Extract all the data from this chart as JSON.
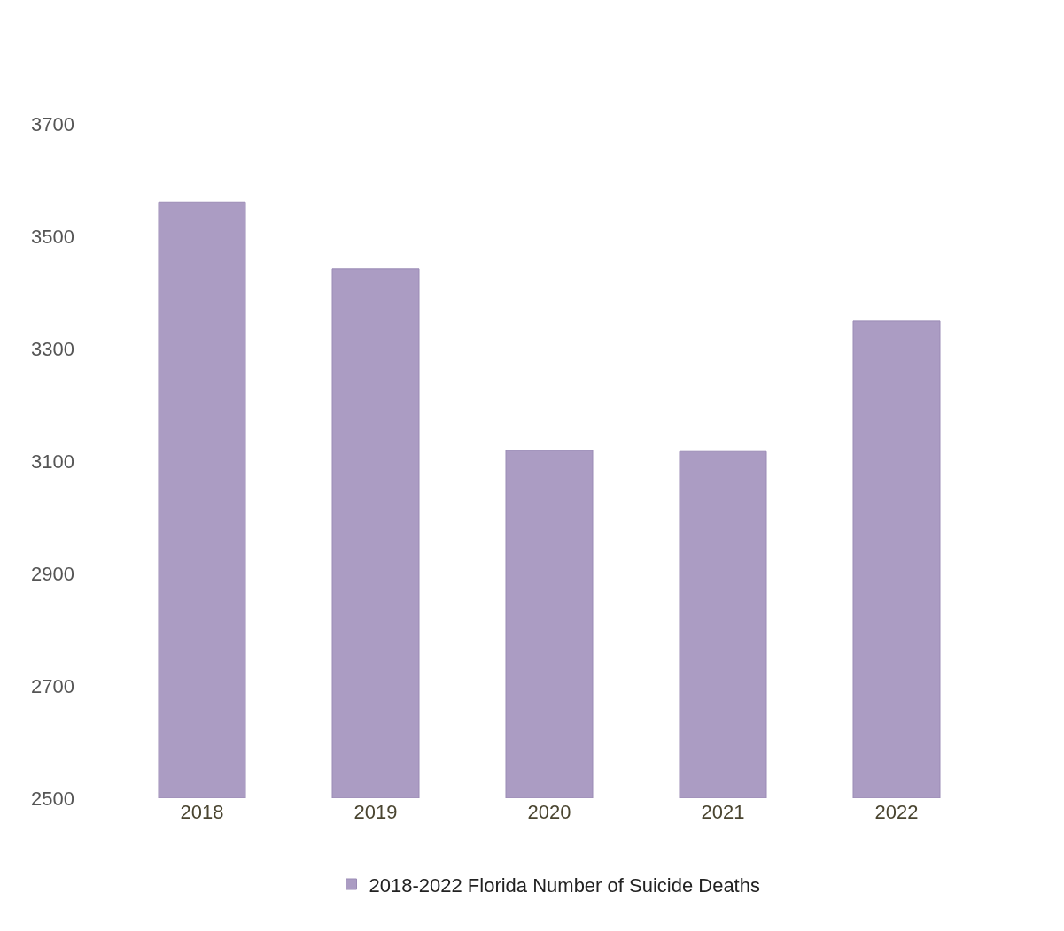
{
  "chart_data": {
    "type": "bar",
    "categories": [
      "2018",
      "2019",
      "2020",
      "2021",
      "2022"
    ],
    "series": [
      {
        "name": "2018-2022 Florida Number of Suicide Deaths",
        "color": "#ab9cc3",
        "values": [
          3561,
          3442,
          3119,
          3117,
          3349
        ]
      }
    ],
    "ylim": [
      2500,
      3700
    ],
    "yticks": [
      2500,
      2700,
      2900,
      3100,
      3300,
      3500,
      3700
    ],
    "legend": "bottom"
  }
}
